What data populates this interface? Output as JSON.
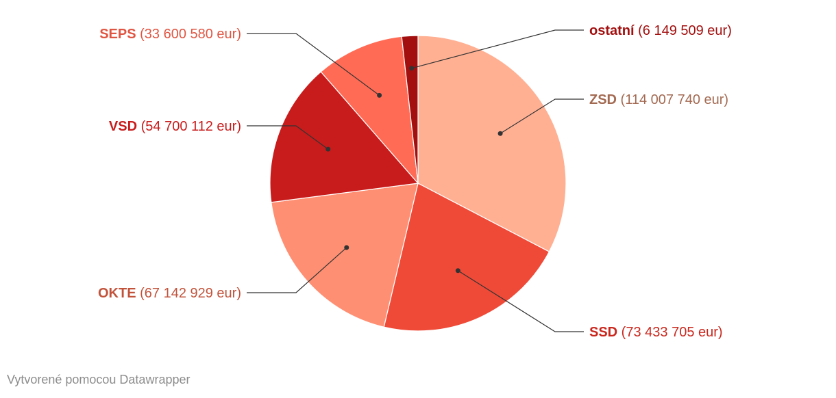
{
  "chart_data": {
    "type": "pie",
    "unit_suffix": "eur",
    "slices": [
      {
        "name": "ZSD",
        "value": 114007740,
        "value_label": "(114 007 740 eur)",
        "color": "#ffb093",
        "label_color": "#a36a52"
      },
      {
        "name": "SSD",
        "value": 73433705,
        "value_label": "(73 433 705 eur)",
        "color": "#ef4a38",
        "label_color": "#c9271d"
      },
      {
        "name": "OKTE",
        "value": 67142929,
        "value_label": "(67 142 929 eur)",
        "color": "#ff8f73",
        "label_color": "#c2533b"
      },
      {
        "name": "VSD",
        "value": 54700112,
        "value_label": "(54 700 112 eur)",
        "color": "#c81c1c",
        "label_color": "#c81c1c"
      },
      {
        "name": "SEPS",
        "value": 33600580,
        "value_label": "(33 600 580 eur)",
        "color": "#ff6b55",
        "label_color": "#e05542"
      },
      {
        "name": "ostatní",
        "value": 6149509,
        "value_label": "(6 149 509 eur)",
        "color": "#a30f0f",
        "label_color": "#a30f0f"
      }
    ]
  },
  "footer": {
    "credit": "Vytvorené pomocou Datawrapper"
  }
}
